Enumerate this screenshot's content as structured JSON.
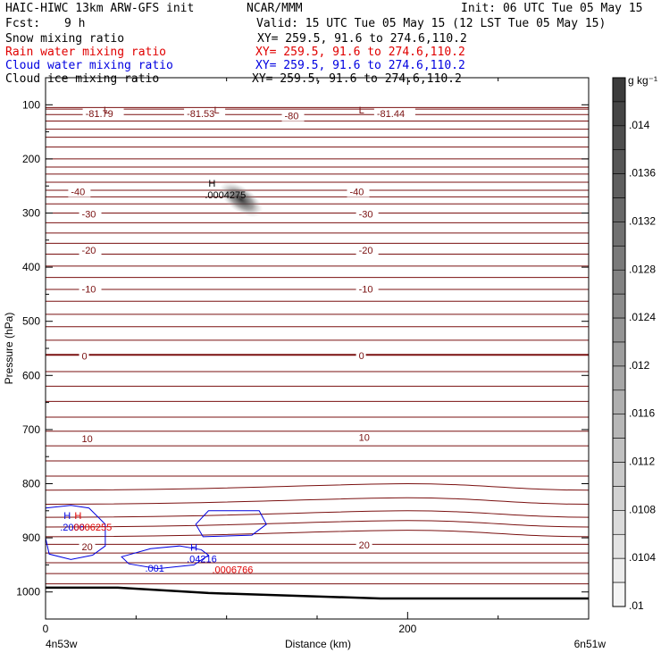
{
  "header": {
    "title": "HAIC-HIWC 13km ARW-GFS init",
    "org": "NCAR/MMM",
    "init": "Init: 06 UTC Tue 05 May 15",
    "fcst_label": "Fcst:",
    "fcst_value": "9 h",
    "valid": "Valid: 15 UTC Tue 05 May 15 (12 LST Tue 05 May 15)",
    "fields": [
      {
        "name": "Snow mixing ratio",
        "xy": "XY= 259.5, 91.6 to 274.6,110.2",
        "color": "#000000"
      },
      {
        "name": "Rain water mixing ratio",
        "xy": "XY= 259.5, 91.6 to 274.6,110.2",
        "color": "#e00000"
      },
      {
        "name": "Cloud water mixing ratio",
        "xy": "XY= 259.5, 91.6 to 274.6,110.2",
        "color": "#0000e0"
      },
      {
        "name": "Cloud ice mixing ratio",
        "xy": "XY= 259.5, 91.6 to 274.6,110.2",
        "color": "#000000"
      }
    ]
  },
  "chart_data": {
    "type": "cross-section",
    "xlabel": "Distance (km)",
    "ylabel": "Pressure (hPa)",
    "x_ticks": [
      "0",
      "200"
    ],
    "x_minor_km": [
      50,
      100,
      150,
      250,
      300
    ],
    "xlim_km": [
      0,
      300
    ],
    "y_ticks": [
      "100",
      "200",
      "300",
      "400",
      "500",
      "600",
      "700",
      "800",
      "900",
      "1000"
    ],
    "ylim_hPa": [
      50,
      1050
    ],
    "endpoints": {
      "left": "4n53w",
      "right": "6n51w"
    },
    "colorbar": {
      "unit": "g kg⁻¹",
      "labels": [
        ".014",
        ".0136",
        ".0132",
        ".0128",
        ".0124",
        ".012",
        ".0116",
        ".0112",
        ".0108",
        ".0104",
        ".01"
      ]
    },
    "temperature_labels": [
      {
        "text": "-81.79",
        "x": 22,
        "p": 118
      },
      {
        "text": "-81.53",
        "x": 78,
        "p": 118
      },
      {
        "text": "-80",
        "x": 132,
        "p": 122
      },
      {
        "text": "-81.44",
        "x": 183,
        "p": 118
      },
      {
        "text": "-40",
        "x": 14,
        "p": 262
      },
      {
        "text": "-40",
        "x": 168,
        "p": 262
      },
      {
        "text": "-30",
        "x": 20,
        "p": 303
      },
      {
        "text": "-30",
        "x": 173,
        "p": 303
      },
      {
        "text": "-20",
        "x": 20,
        "p": 370
      },
      {
        "text": "-20",
        "x": 173,
        "p": 370
      },
      {
        "text": "-10",
        "x": 20,
        "p": 442
      },
      {
        "text": "-10",
        "x": 173,
        "p": 442
      },
      {
        "text": "0",
        "x": 20,
        "p": 566
      },
      {
        "text": "0",
        "x": 173,
        "p": 565
      },
      {
        "text": "10",
        "x": 20,
        "p": 718
      },
      {
        "text": "10",
        "x": 173,
        "p": 716
      },
      {
        "text": "20",
        "x": 20,
        "p": 918
      },
      {
        "text": "20",
        "x": 173,
        "p": 915
      }
    ],
    "lows": [
      {
        "text": "L",
        "x": 32,
        "p": 109
      },
      {
        "text": "L",
        "x": 93,
        "p": 109
      },
      {
        "text": "L",
        "x": 173,
        "p": 109
      }
    ],
    "highs": [
      {
        "label": "H",
        "value": ".0004275",
        "x": 88,
        "p": 258,
        "color": "#000000"
      },
      {
        "label": "H",
        "value": ".2006",
        "x": 8,
        "p": 872,
        "color": "#0000e0"
      },
      {
        "label": "H",
        "value": ".0006255",
        "x": 14,
        "p": 872,
        "color": "#e00000"
      },
      {
        "label": "H",
        "value": ".04216",
        "x": 78,
        "p": 930,
        "color": "#0000e0"
      },
      {
        "label": "",
        "value": ".0006766",
        "x": 92,
        "p": 950,
        "color": "#e00000"
      },
      {
        "label": "",
        "value": ".001",
        "x": 55,
        "p": 948,
        "color": "#0000e0"
      }
    ],
    "grey_blob": {
      "x": 108,
      "p": 275
    }
  }
}
